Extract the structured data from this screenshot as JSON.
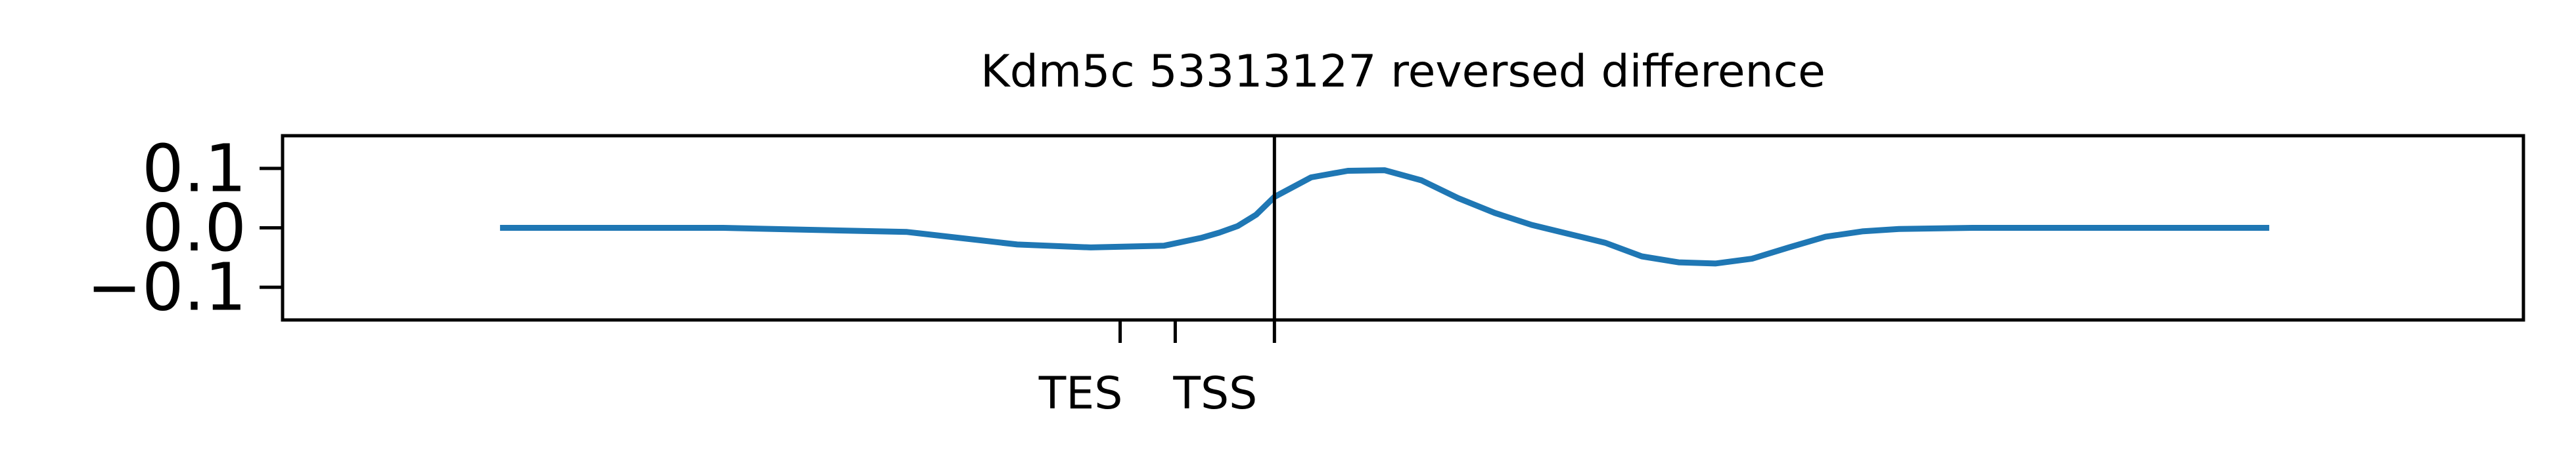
{
  "chart_data": {
    "type": "line",
    "title": "Kdm5c 53313127 reversed difference",
    "xlabel": "",
    "ylabel": "",
    "xlim": [
      -2700,
      3400
    ],
    "ylim": [
      -0.155,
      0.155
    ],
    "grid": false,
    "legend": "none",
    "series_color": "#1f77b4",
    "y_ticks": [
      {
        "value": 0.1,
        "label": "0.1"
      },
      {
        "value": 0.0,
        "label": "0.0"
      },
      {
        "value": -0.1,
        "label": "−0.1"
      }
    ],
    "x_ticks": [
      {
        "value": -420,
        "label": "TES"
      },
      {
        "value": -270,
        "label": ""
      },
      {
        "value": 0,
        "label": "TSS"
      }
    ],
    "vline_x": 0,
    "series": [
      {
        "x": [
          -2100,
          -1500,
          -1000,
          -700,
          -500,
          -300,
          -200,
          -150,
          -100,
          -50,
          0,
          100,
          200,
          300,
          400,
          500,
          600,
          700,
          800,
          900,
          1000,
          1100,
          1200,
          1300,
          1400,
          1500,
          1600,
          1700,
          1800,
          1900,
          2000,
          2300,
          2700
        ],
        "y": [
          0.0,
          0.0,
          -0.007,
          -0.028,
          -0.033,
          -0.03,
          -0.017,
          -0.008,
          0.003,
          0.022,
          0.052,
          0.085,
          0.096,
          0.097,
          0.08,
          0.05,
          0.025,
          0.005,
          -0.01,
          -0.025,
          -0.048,
          -0.058,
          -0.06,
          -0.052,
          -0.033,
          -0.015,
          -0.006,
          -0.002,
          -0.001,
          0.0,
          0.0,
          0.0,
          0.0
        ]
      }
    ]
  }
}
